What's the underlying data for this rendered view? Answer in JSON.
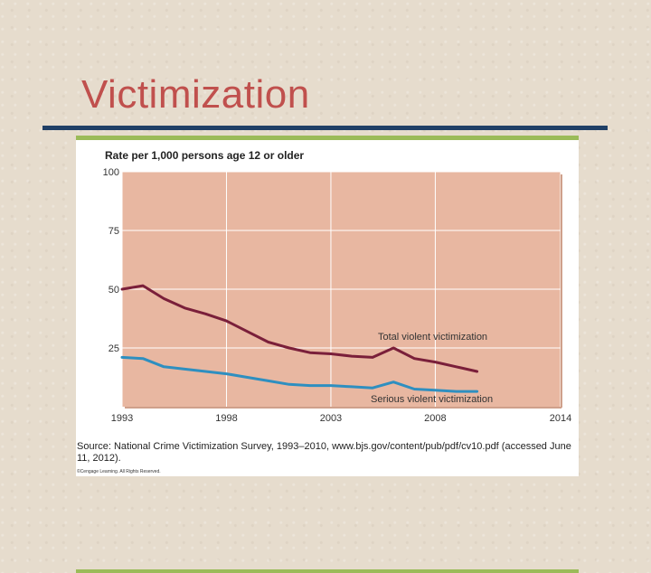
{
  "slide": {
    "title": "Victimization"
  },
  "source_note": "Source: National Crime Victimization Survey, 1993–2010, www.bjs.gov/content/pub/pdf/cv10.pdf (accessed June 11, 2012).",
  "copyright": "©Cengage Learning. All Rights Reserved.",
  "colors": {
    "title": "#c0504d",
    "rule": "#1f3f66",
    "plot_bg": "#e8b7a1",
    "total": "#7a1f3a",
    "serious": "#2e8fc0",
    "accent_bar": "#9bbb59"
  },
  "chart_data": {
    "type": "line",
    "ylabel": "Rate per 1,000 persons age 12 or older",
    "ylim": [
      0,
      100
    ],
    "xlim": [
      1993,
      2014
    ],
    "yticks": [
      "100",
      "75",
      "50",
      "25"
    ],
    "ytick_values": [
      100,
      75,
      50,
      25
    ],
    "xticks": [
      "1993",
      "1998",
      "2003",
      "2008",
      "2014"
    ],
    "xtick_values": [
      1993,
      1998,
      2003,
      2008,
      2014
    ],
    "grid": true,
    "series": [
      {
        "name": "Total violent victimization",
        "x": [
          1993,
          1994,
          1995,
          1996,
          1997,
          1998,
          1999,
          2000,
          2001,
          2002,
          2003,
          2004,
          2005,
          2006,
          2007,
          2008,
          2009,
          2010
        ],
        "values": [
          50,
          51.5,
          46,
          42,
          39.5,
          36.5,
          32,
          27.5,
          25,
          23,
          22.5,
          21.5,
          21,
          25,
          20.5,
          19,
          17,
          15
        ]
      },
      {
        "name": "Serious violent victimization",
        "x": [
          1993,
          1994,
          1995,
          1996,
          1997,
          1998,
          1999,
          2000,
          2001,
          2002,
          2003,
          2004,
          2005,
          2006,
          2007,
          2008,
          2009,
          2010
        ],
        "values": [
          21,
          20.5,
          17,
          16,
          15,
          14,
          12.5,
          11,
          9.5,
          9,
          9,
          8.5,
          8,
          10.5,
          7.5,
          7,
          6.5,
          6.5
        ]
      }
    ]
  }
}
